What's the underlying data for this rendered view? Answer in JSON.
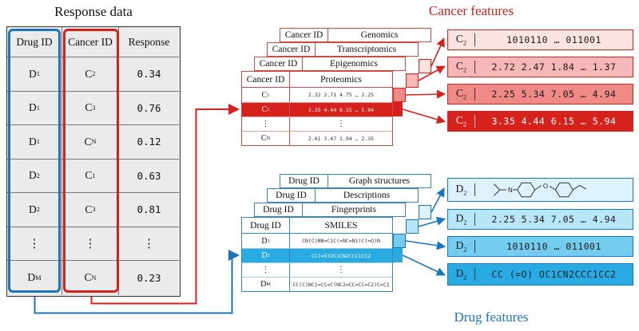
{
  "colors": {
    "red": "#d6221c",
    "blue": "#1b75bc",
    "cyan": "#29abe2",
    "white": "#ffffff"
  },
  "titles": {
    "response": "Response data",
    "cancer": "Cancer features",
    "drug": "Drug features"
  },
  "response_table": {
    "headers": [
      "Drug ID",
      "Cancer ID",
      "Response"
    ],
    "rows": [
      {
        "drug": "D_1",
        "cancer": "C_2",
        "response": "0.34"
      },
      {
        "drug": "D_1",
        "cancer": "C_3",
        "response": "0.76"
      },
      {
        "drug": "D_1",
        "cancer": "C_N",
        "response": "0.12"
      },
      {
        "drug": "D_2",
        "cancer": "C_1",
        "response": "0.63"
      },
      {
        "drug": "D_2",
        "cancer": "C_3",
        "response": "0.81"
      },
      {
        "drug": "⋮",
        "cancer": "⋮",
        "response": "⋮"
      },
      {
        "drug": "D_M",
        "cancer": "C_N",
        "response": "0.23"
      }
    ]
  },
  "cancer": {
    "id_header": "Cancer ID",
    "back_tables": [
      {
        "name": "Genomics"
      },
      {
        "name": "Transcriptomics"
      },
      {
        "name": "Epigenomics"
      }
    ],
    "front": {
      "name": "Proteomics",
      "rows": [
        {
          "id": "C_1",
          "values": "2.32 2.71 4.75 … 2.25"
        },
        {
          "id": "C_2",
          "values": "3.35 4.44 6.15 … 5.94"
        },
        {
          "id": "⋮",
          "values": "⋮"
        },
        {
          "id": "C_N",
          "values": "2.61 3.47 1.94 … 2.35"
        }
      ]
    },
    "boxes": [
      {
        "label": "C_2",
        "value": "1010110 … 011001",
        "bg": "#fbe3e2",
        "fg": "#1a1a1a"
      },
      {
        "label": "C_2",
        "value": "2.72 2.47 1.84 … 1.37",
        "bg": "#f6b8b6",
        "fg": "#1a1a1a"
      },
      {
        "label": "C_2",
        "value": "2.25 5.34 7.05 … 4.94",
        "bg": "#ef8a86",
        "fg": "#1a1a1a"
      },
      {
        "label": "C_2",
        "value": "3.35 4.44 6.15 … 5.94",
        "bg": "#d6221c",
        "fg": "#ffffff"
      }
    ]
  },
  "drug": {
    "id_header": "Drug ID",
    "back_tables": [
      {
        "name": "Graph structures"
      },
      {
        "name": "Descriptions"
      },
      {
        "name": "Fingerprints"
      }
    ],
    "front": {
      "name": "SMILES",
      "rows": [
        {
          "id": "D_1",
          "values": "CN(C)NN=C1C(=NC=N1)C(=O)N"
        },
        {
          "id": "D_2",
          "values": "CC(=O)OC1CN2CCC1CC2"
        },
        {
          "id": "⋮",
          "values": "⋮"
        },
        {
          "id": "D_M",
          "values": "CC(C)NC1=CC=C(NC2=CC=CC=C2)C=C1"
        }
      ]
    },
    "boxes": [
      {
        "label": "D_2",
        "value": "",
        "icon": "molecule-structure",
        "bg": "#ddf2fc",
        "fg": "#1a1a1a"
      },
      {
        "label": "D_2",
        "value": "2.25 5.34 7.05 … 4.94",
        "bg": "#b7e6f8",
        "fg": "#1a1a1a"
      },
      {
        "label": "D_2",
        "value": "1010110 … 011001",
        "bg": "#74ccee",
        "fg": "#1a1a1a"
      },
      {
        "label": "D_2",
        "value": "CC (=O) OC1CN2CCC1CC2",
        "bg": "#29abe2",
        "fg": "#0b2233"
      }
    ]
  }
}
